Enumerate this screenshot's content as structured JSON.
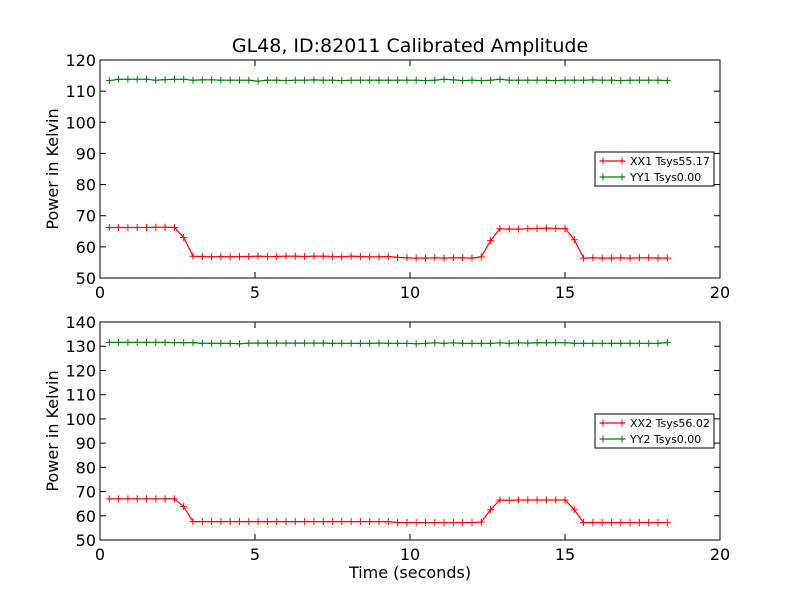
{
  "title": "GL48, ID:82011 Calibrated Amplitude",
  "chart_data": [
    {
      "type": "line",
      "xlabel": "",
      "ylabel": "Power in Kelvin",
      "xlim": [
        0,
        20
      ],
      "ylim": [
        50,
        120
      ],
      "xticks": [
        0,
        5,
        10,
        15,
        20
      ],
      "yticks": [
        50,
        60,
        70,
        80,
        90,
        100,
        110,
        120
      ],
      "grid": false,
      "legend_position": "center-right",
      "x": [
        0.3,
        0.6,
        0.9,
        1.2,
        1.5,
        1.8,
        2.1,
        2.4,
        2.7,
        3.0,
        3.3,
        3.6,
        3.9,
        4.2,
        4.5,
        4.8,
        5.1,
        5.4,
        5.7,
        6.0,
        6.3,
        6.6,
        6.9,
        7.2,
        7.5,
        7.8,
        8.1,
        8.4,
        8.7,
        9.0,
        9.3,
        9.6,
        9.9,
        10.2,
        10.5,
        10.8,
        11.1,
        11.4,
        11.7,
        12.0,
        12.3,
        12.6,
        12.9,
        13.2,
        13.5,
        13.8,
        14.1,
        14.4,
        14.7,
        15.0,
        15.3,
        15.6,
        15.9,
        16.2,
        16.5,
        16.8,
        17.1,
        17.4,
        17.7,
        18.0,
        18.3
      ],
      "series": [
        {
          "name": "XX1 Tsys55.17",
          "color": "#ff0000",
          "values": [
            66.2,
            66.2,
            66.2,
            66.2,
            66.2,
            66.3,
            66.3,
            66.2,
            63.0,
            57.0,
            56.9,
            56.8,
            56.9,
            56.8,
            56.9,
            56.9,
            57.0,
            56.9,
            56.9,
            57.0,
            57.0,
            56.9,
            57.0,
            57.0,
            56.9,
            56.8,
            57.0,
            56.9,
            56.8,
            56.8,
            56.9,
            56.6,
            56.5,
            56.4,
            56.4,
            56.5,
            56.4,
            56.5,
            56.5,
            56.4,
            56.8,
            62.0,
            65.8,
            65.7,
            65.7,
            65.8,
            65.9,
            66.0,
            65.9,
            65.9,
            62.3,
            56.4,
            56.5,
            56.4,
            56.4,
            56.5,
            56.4,
            56.5,
            56.5,
            56.4,
            56.4
          ]
        },
        {
          "name": "YY1 Tsys0.00",
          "color": "#008000",
          "values": [
            113.4,
            113.8,
            113.8,
            113.8,
            113.8,
            113.5,
            113.7,
            113.8,
            113.8,
            113.5,
            113.6,
            113.6,
            113.5,
            113.5,
            113.5,
            113.5,
            113.2,
            113.5,
            113.5,
            113.4,
            113.5,
            113.5,
            113.6,
            113.5,
            113.5,
            113.4,
            113.5,
            113.5,
            113.5,
            113.5,
            113.5,
            113.5,
            113.5,
            113.5,
            113.4,
            113.5,
            113.8,
            113.6,
            113.4,
            113.5,
            113.4,
            113.5,
            113.8,
            113.5,
            113.5,
            113.5,
            113.5,
            113.5,
            113.4,
            113.5,
            113.5,
            113.5,
            113.6,
            113.5,
            113.5,
            113.4,
            113.5,
            113.5,
            113.5,
            113.5,
            113.4
          ]
        }
      ]
    },
    {
      "type": "line",
      "xlabel": "Time (seconds)",
      "ylabel": "Power in Kelvin",
      "xlim": [
        0,
        20
      ],
      "ylim": [
        50,
        140
      ],
      "xticks": [
        0,
        5,
        10,
        15,
        20
      ],
      "yticks": [
        50,
        60,
        70,
        80,
        90,
        100,
        110,
        120,
        130,
        140
      ],
      "grid": false,
      "legend_position": "center-right",
      "x": [
        0.3,
        0.6,
        0.9,
        1.2,
        1.5,
        1.8,
        2.1,
        2.4,
        2.7,
        3.0,
        3.3,
        3.6,
        3.9,
        4.2,
        4.5,
        4.8,
        5.1,
        5.4,
        5.7,
        6.0,
        6.3,
        6.6,
        6.9,
        7.2,
        7.5,
        7.8,
        8.1,
        8.4,
        8.7,
        9.0,
        9.3,
        9.6,
        9.9,
        10.2,
        10.5,
        10.8,
        11.1,
        11.4,
        11.7,
        12.0,
        12.3,
        12.6,
        12.9,
        13.2,
        13.5,
        13.8,
        14.1,
        14.4,
        14.7,
        15.0,
        15.3,
        15.6,
        15.9,
        16.2,
        16.5,
        16.8,
        17.1,
        17.4,
        17.7,
        18.0,
        18.3
      ],
      "series": [
        {
          "name": "XX2 Tsys56.02",
          "color": "#ff0000",
          "values": [
            67.0,
            67.0,
            67.0,
            67.0,
            67.0,
            67.0,
            67.0,
            67.0,
            63.8,
            57.6,
            57.6,
            57.6,
            57.6,
            57.6,
            57.6,
            57.6,
            57.6,
            57.6,
            57.6,
            57.6,
            57.6,
            57.6,
            57.6,
            57.6,
            57.6,
            57.6,
            57.6,
            57.6,
            57.6,
            57.6,
            57.6,
            57.2,
            57.2,
            57.2,
            57.2,
            57.2,
            57.2,
            57.2,
            57.2,
            57.2,
            57.4,
            62.5,
            66.5,
            66.3,
            66.5,
            66.5,
            66.5,
            66.5,
            66.5,
            66.5,
            62.5,
            57.2,
            57.2,
            57.2,
            57.2,
            57.2,
            57.2,
            57.2,
            57.2,
            57.2,
            57.2
          ]
        },
        {
          "name": "YY2 Tsys0.00",
          "color": "#008000",
          "values": [
            131.6,
            131.6,
            131.6,
            131.6,
            131.6,
            131.6,
            131.6,
            131.5,
            131.5,
            131.5,
            131.2,
            131.2,
            131.2,
            131.2,
            131.0,
            131.3,
            131.3,
            131.3,
            131.3,
            131.3,
            131.3,
            131.3,
            131.3,
            131.3,
            131.2,
            131.2,
            131.2,
            131.2,
            131.2,
            131.3,
            131.2,
            131.2,
            131.2,
            131.0,
            131.2,
            131.4,
            131.2,
            131.4,
            131.2,
            131.2,
            131.2,
            131.2,
            131.4,
            131.2,
            131.4,
            131.3,
            131.5,
            131.4,
            131.5,
            131.5,
            131.2,
            131.2,
            131.2,
            131.2,
            131.2,
            131.2,
            131.2,
            131.2,
            131.2,
            131.2,
            131.5
          ]
        }
      ]
    }
  ]
}
